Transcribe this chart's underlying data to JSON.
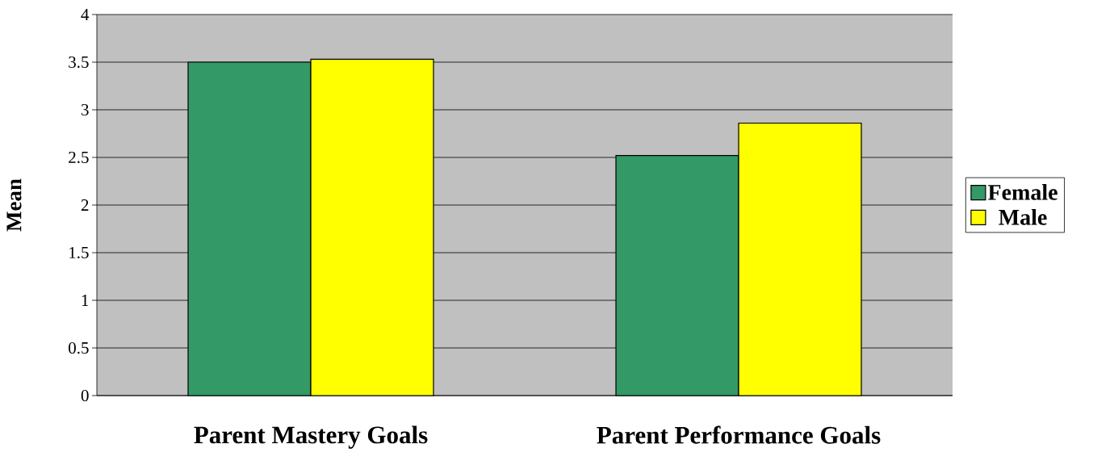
{
  "chart_data": {
    "type": "bar",
    "ylabel": "Mean",
    "categories": [
      "Parent Mastery Goals",
      "Parent Performance Goals"
    ],
    "series": [
      {
        "name": "Female",
        "color": "#339966",
        "values": [
          3.5,
          2.52
        ]
      },
      {
        "name": "Male",
        "color": "#ffff00",
        "values": [
          3.53,
          2.86
        ]
      }
    ],
    "ylim": [
      0,
      4
    ],
    "yticks": [
      0,
      0.5,
      1,
      1.5,
      2,
      2.5,
      3,
      3.5,
      4
    ],
    "grid": "y",
    "legend": "right"
  }
}
